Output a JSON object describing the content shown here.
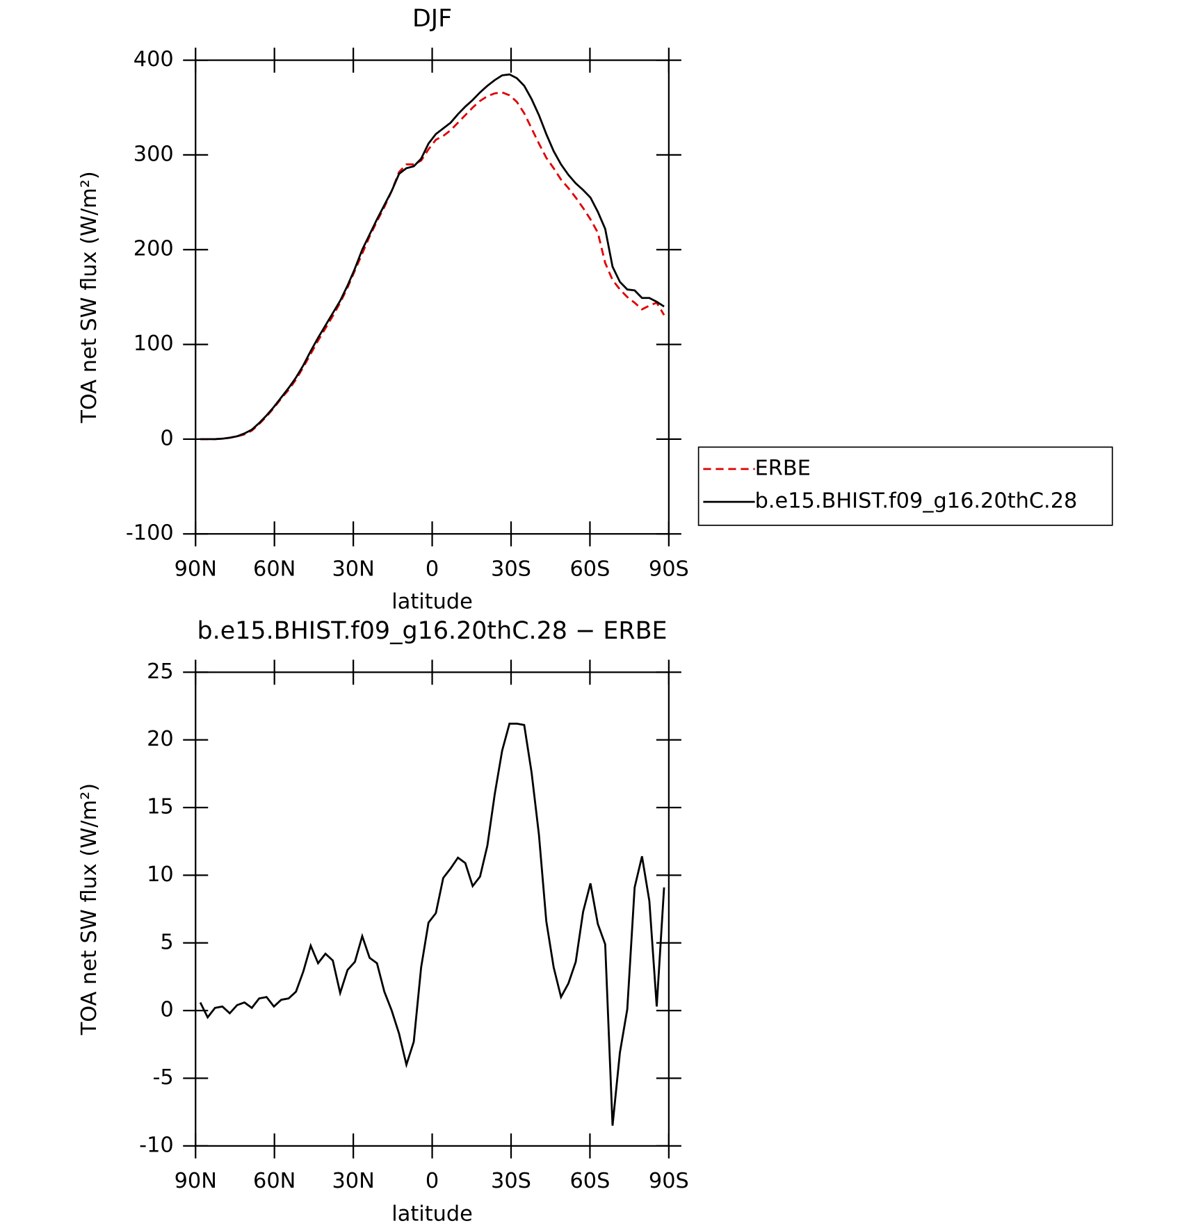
{
  "chart_data": [
    {
      "type": "line",
      "title": "DJF",
      "x_label": "latitude",
      "y_label": "TOA net SW flux (W/m²)",
      "x": [
        88.2,
        85.4,
        82.6,
        79.8,
        77,
        74.2,
        71.4,
        68.6,
        65.8,
        63,
        60.2,
        57.4,
        54.6,
        51.8,
        49,
        46.2,
        43.4,
        40.6,
        37.8,
        35,
        32.2,
        29.4,
        26.6,
        23.8,
        21,
        18.2,
        15.4,
        12.6,
        9.8,
        7,
        4.2,
        1.4,
        -1.4,
        -4.2,
        -7,
        -9.8,
        -12.6,
        -15.4,
        -18.2,
        -21,
        -23.8,
        -26.6,
        -29.4,
        -32.2,
        -35,
        -37.8,
        -40.6,
        -43.4,
        -46.2,
        -49,
        -51.8,
        -54.6,
        -57.4,
        -60.2,
        -63,
        -65.8,
        -68.6,
        -71.4,
        -74.2,
        -77,
        -79.8,
        -82.6,
        -85.4,
        -88.2
      ],
      "series": [
        {
          "name": "ERBE",
          "color": "#e00000",
          "dash": true,
          "values": [
            0,
            0,
            0,
            0.5,
            1.5,
            3,
            5,
            9,
            16,
            24,
            33,
            43,
            52,
            63,
            76,
            90,
            104,
            117,
            130,
            144,
            160,
            178,
            196,
            214,
            230,
            245,
            262,
            282,
            290,
            290,
            294,
            306,
            316,
            320,
            326,
            334,
            342,
            350,
            357,
            362,
            365,
            366,
            363,
            356,
            344,
            328,
            312,
            297,
            286,
            274,
            265,
            255,
            244,
            232,
            218,
            186,
            168,
            158,
            150,
            144,
            137,
            141,
            144,
            131
          ]
        },
        {
          "name": "b.e15.BHIST.f09_g16.20thC.28",
          "color": "#000000",
          "dash": false,
          "values": [
            0,
            0,
            0,
            0.5,
            1.5,
            3,
            6,
            10,
            17,
            25,
            34,
            44,
            54,
            65,
            78,
            93,
            107,
            120,
            133,
            146,
            162,
            180,
            200,
            216,
            232,
            247,
            262,
            280,
            286,
            288,
            296,
            312,
            322,
            328,
            334,
            343,
            351,
            358,
            366,
            373,
            379,
            384,
            385,
            381,
            373,
            359,
            342,
            322,
            304,
            290,
            279,
            270,
            263,
            255,
            240,
            222,
            182,
            166,
            158,
            157,
            149,
            149,
            145,
            140
          ]
        }
      ],
      "xlim": [
        90,
        -90
      ],
      "xticks": [
        {
          "value": 90,
          "label": "90N"
        },
        {
          "value": 60,
          "label": "60N"
        },
        {
          "value": 30,
          "label": "30N"
        },
        0,
        {
          "value": -30,
          "label": "30S"
        },
        {
          "value": -60,
          "label": "60S"
        },
        {
          "value": -90,
          "label": "90S"
        }
      ],
      "ylim": [
        -100,
        400
      ],
      "yticks": [
        -100,
        0,
        100,
        200,
        300,
        400
      ],
      "legend": "right"
    },
    {
      "type": "line",
      "title": "b.e15.BHIST.f09_g16.20thC.28 − ERBE",
      "x_label": "latitude",
      "y_label": "TOA net SW flux (W/m²)",
      "x": [
        88.2,
        85.4,
        82.6,
        79.8,
        77,
        74.2,
        71.4,
        68.6,
        65.8,
        63,
        60.2,
        57.4,
        54.6,
        51.8,
        49,
        46.2,
        43.4,
        40.6,
        37.8,
        35,
        32.2,
        29.4,
        26.6,
        23.8,
        21,
        18.2,
        15.4,
        12.6,
        9.8,
        7,
        4.2,
        1.4,
        -1.4,
        -4.2,
        -7,
        -9.8,
        -12.6,
        -15.4,
        -18.2,
        -21,
        -23.8,
        -26.6,
        -29.4,
        -32.2,
        -35,
        -37.8,
        -40.6,
        -43.4,
        -46.2,
        -49,
        -51.8,
        -54.6,
        -57.4,
        -60.2,
        -63,
        -65.8,
        -68.6,
        -71.4,
        -74.2,
        -77,
        -79.8,
        -82.6,
        -85.4,
        -88.2
      ],
      "color": "#000000",
      "values": [
        0.6,
        -0.5,
        0.2,
        0.3,
        -0.2,
        0.4,
        0.6,
        0.2,
        0.9,
        1.0,
        0.3,
        0.8,
        0.9,
        1.4,
        2.9,
        4.8,
        3.5,
        4.2,
        3.7,
        1.3,
        3.0,
        3.6,
        5.5,
        3.9,
        3.5,
        1.4,
        0.0,
        -1.7,
        -4.0,
        -2.3,
        3.2,
        6.5,
        7.2,
        9.8,
        10.5,
        11.3,
        10.9,
        9.2,
        9.9,
        12.2,
        16.0,
        19.2,
        21.2,
        21.2,
        21.1,
        17.6,
        13.0,
        6.6,
        3.2,
        1.0,
        2.0,
        3.6,
        7.3,
        9.4,
        6.4,
        4.9,
        -8.5,
        -3.1,
        0.1,
        9.1,
        11.4,
        8.1,
        0.3,
        9.1
      ],
      "xlim": [
        90,
        -90
      ],
      "xticks": [
        {
          "value": 90,
          "label": "90N"
        },
        {
          "value": 60,
          "label": "60N"
        },
        {
          "value": 30,
          "label": "30N"
        },
        0,
        {
          "value": -30,
          "label": "30S"
        },
        {
          "value": -60,
          "label": "60S"
        },
        {
          "value": -90,
          "label": "90S"
        }
      ],
      "ylim": [
        -10,
        25
      ],
      "yticks": [
        -10,
        -5,
        0,
        5,
        10,
        15,
        20,
        25
      ]
    }
  ]
}
